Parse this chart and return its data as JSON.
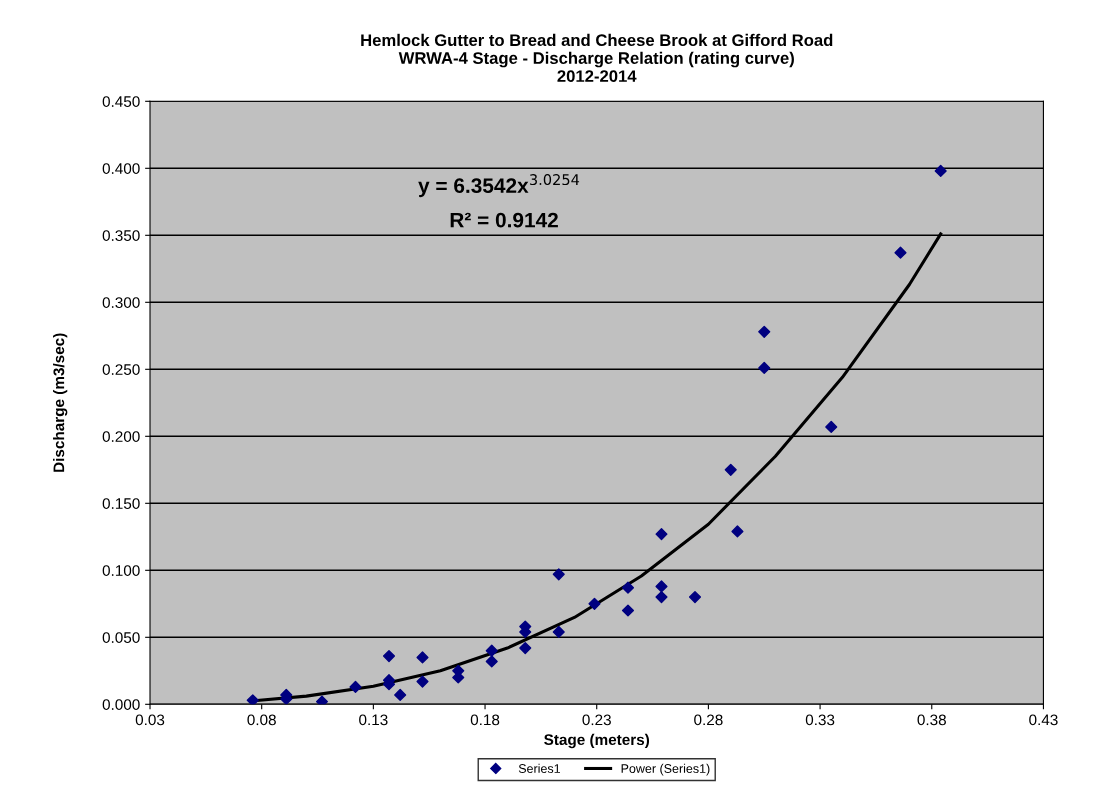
{
  "chart_data": {
    "type": "scatter",
    "title": "Hemlock Gutter to Bread and Cheese Brook at Gifford Road\nWRWA-4 Stage - Discharge Relation (rating curve)\n2012-2014",
    "xlabel": "Stage (meters)",
    "ylabel": "Discharge (m3/sec)",
    "series": [
      {
        "name": "Series1",
        "color": "#000080",
        "marker": "diamond",
        "x": [
          0.076,
          0.091,
          0.091,
          0.107,
          0.122,
          0.137,
          0.137,
          0.137,
          0.142,
          0.152,
          0.152,
          0.168,
          0.168,
          0.183,
          0.183,
          0.198,
          0.198,
          0.198,
          0.213,
          0.213,
          0.229,
          0.244,
          0.244,
          0.259,
          0.259,
          0.259,
          0.274,
          0.29,
          0.293,
          0.305,
          0.305,
          0.335,
          0.366,
          0.384
        ],
        "values": [
          0.003,
          0.007,
          0.004,
          0.002,
          0.013,
          0.036,
          0.018,
          0.015,
          0.007,
          0.035,
          0.017,
          0.025,
          0.02,
          0.04,
          0.032,
          0.058,
          0.054,
          0.042,
          0.097,
          0.054,
          0.075,
          0.087,
          0.07,
          0.127,
          0.088,
          0.08,
          0.08,
          0.175,
          0.129,
          0.278,
          0.251,
          0.207,
          0.337,
          0.398
        ]
      },
      {
        "name": "Power (Series1)",
        "type": "line",
        "color": "#000000",
        "marker": "none",
        "line_style": "solid",
        "x": [
          0.076,
          0.1,
          0.13,
          0.16,
          0.19,
          0.22,
          0.25,
          0.28,
          0.31,
          0.34,
          0.37,
          0.384
        ],
        "values": [
          0.0026,
          0.0061,
          0.0134,
          0.025,
          0.042,
          0.0648,
          0.0957,
          0.1344,
          0.1851,
          0.244,
          0.3133,
          0.351
        ]
      }
    ],
    "xlim": [
      0.03,
      0.43
    ],
    "xticks": [
      {
        "value": 0.03,
        "label": "0.03"
      },
      {
        "value": 0.08,
        "label": "0.08"
      },
      {
        "value": 0.13,
        "label": "0.13"
      },
      {
        "value": 0.18,
        "label": "0.18"
      },
      {
        "value": 0.23,
        "label": "0.23"
      },
      {
        "value": 0.28,
        "label": "0.28"
      },
      {
        "value": 0.33,
        "label": "0.33"
      },
      {
        "value": 0.38,
        "label": "0.38"
      },
      {
        "value": 0.43,
        "label": "0.43"
      }
    ],
    "ylim": [
      0,
      0.45
    ],
    "yticks": [
      {
        "value": 0,
        "label": "0.000"
      },
      {
        "value": 0.05,
        "label": "0.050"
      },
      {
        "value": 0.1,
        "label": "0.100"
      },
      {
        "value": 0.15,
        "label": "0.150"
      },
      {
        "value": 0.2,
        "label": "0.200"
      },
      {
        "value": 0.25,
        "label": "0.250"
      },
      {
        "value": 0.3,
        "label": "0.300"
      },
      {
        "value": 0.35,
        "label": "0.350"
      },
      {
        "value": 0.4,
        "label": "0.400"
      },
      {
        "value": 0.45,
        "label": "0.450"
      }
    ],
    "grid": "y",
    "legend": "bottom",
    "annotations": [
      "y = 6.3542x$^{3.0254}$",
      "R² = 0.9142"
    ]
  }
}
